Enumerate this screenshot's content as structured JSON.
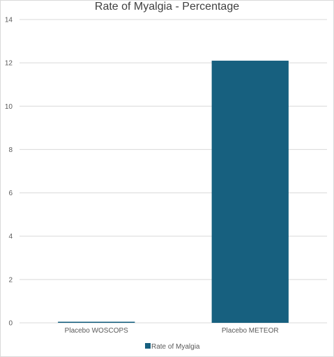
{
  "chart_data": {
    "type": "bar",
    "title": "Rate of Myalgia - Percentage",
    "categories": [
      "Placebo WOSCOPS",
      "Placebo METEOR"
    ],
    "series": [
      {
        "name": "Rate of Myalgia",
        "values": [
          0.05,
          12.1
        ]
      }
    ],
    "ylim": [
      0,
      14
    ],
    "yticks": [
      0,
      2,
      4,
      6,
      8,
      10,
      12,
      14
    ],
    "grid": true,
    "legend": "bottom",
    "xlabel": "",
    "ylabel": ""
  },
  "colors": {
    "bar": "#17607f",
    "grid": "#d9d9d9",
    "text": "#595959"
  }
}
